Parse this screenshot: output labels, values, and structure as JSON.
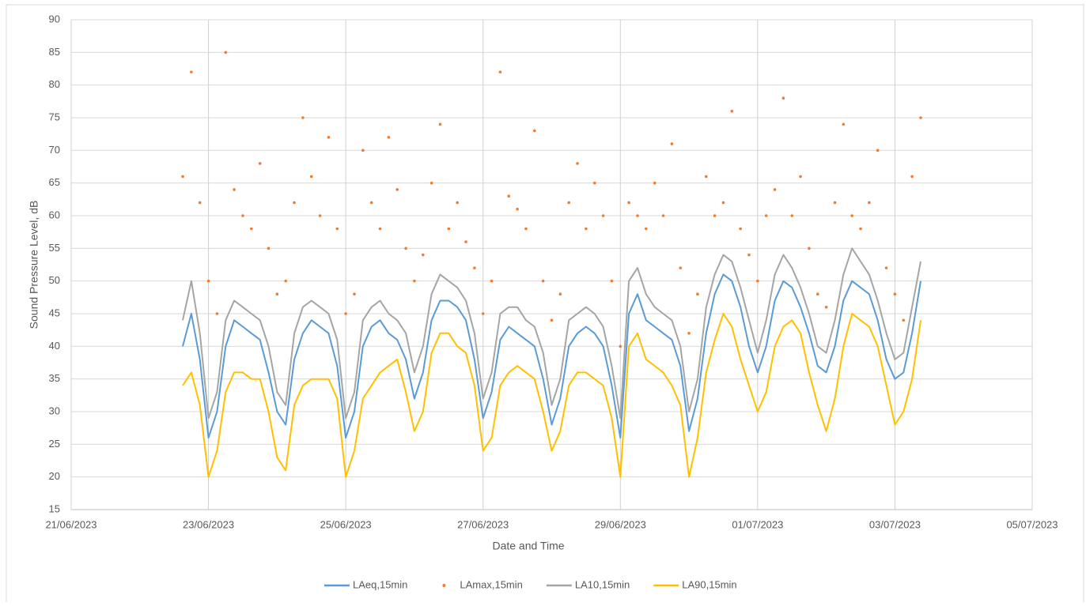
{
  "chart_data": {
    "type": "line",
    "x_label": "Date and Time",
    "y_label": "Sound Pressure Level, dB",
    "xlim": [
      45098,
      45112
    ],
    "xticks": [
      {
        "value": 45098,
        "label": "21/06/2023"
      },
      {
        "value": 45100,
        "label": "23/06/2023"
      },
      {
        "value": 45102,
        "label": "25/06/2023"
      },
      {
        "value": 45104,
        "label": "27/06/2023"
      },
      {
        "value": 45106,
        "label": "29/06/2023"
      },
      {
        "value": 45108,
        "label": "01/07/2023"
      },
      {
        "value": 45110,
        "label": "03/07/2023"
      },
      {
        "value": 45112,
        "label": "05/07/2023"
      }
    ],
    "ylim": [
      15,
      90
    ],
    "yticks": [
      15,
      20,
      25,
      30,
      35,
      40,
      45,
      50,
      55,
      60,
      65,
      70,
      75,
      80,
      85,
      90
    ],
    "grid": true,
    "legend": "bottom",
    "x": [
      45099.625,
      45099.75,
      45099.875,
      45100,
      45100.125,
      45100.25,
      45100.375,
      45100.5,
      45100.625,
      45100.75,
      45100.875,
      45101,
      45101.125,
      45101.25,
      45101.375,
      45101.5,
      45101.625,
      45101.75,
      45101.875,
      45102,
      45102.125,
      45102.25,
      45102.375,
      45102.5,
      45102.625,
      45102.75,
      45102.875,
      45103,
      45103.125,
      45103.25,
      45103.375,
      45103.5,
      45103.625,
      45103.75,
      45103.875,
      45104,
      45104.125,
      45104.25,
      45104.375,
      45104.5,
      45104.625,
      45104.75,
      45104.875,
      45105,
      45105.125,
      45105.25,
      45105.375,
      45105.5,
      45105.625,
      45105.75,
      45105.875,
      45106,
      45106.125,
      45106.25,
      45106.375,
      45106.5,
      45106.625,
      45106.75,
      45106.875,
      45107,
      45107.125,
      45107.25,
      45107.375,
      45107.5,
      45107.625,
      45107.75,
      45107.875,
      45108,
      45108.125,
      45108.25,
      45108.375,
      45108.5,
      45108.625,
      45108.75,
      45108.875,
      45109,
      45109.125,
      45109.25,
      45109.375,
      45109.5,
      45109.625,
      45109.75,
      45109.875,
      45110,
      45110.125,
      45110.25,
      45110.375
    ],
    "series": [
      {
        "name": "LAeq,15min",
        "color": "#5b9bd5",
        "style": "line",
        "values": [
          40,
          45,
          38,
          26,
          30,
          40,
          44,
          43,
          42,
          41,
          36,
          30,
          28,
          38,
          42,
          44,
          43,
          42,
          37,
          26,
          30,
          40,
          43,
          44,
          42,
          41,
          38,
          32,
          36,
          44,
          47,
          47,
          46,
          44,
          38,
          29,
          33,
          41,
          43,
          42,
          41,
          40,
          35,
          28,
          32,
          40,
          42,
          43,
          42,
          40,
          34,
          26,
          45,
          48,
          44,
          43,
          42,
          41,
          37,
          27,
          32,
          42,
          48,
          51,
          50,
          46,
          40,
          36,
          40,
          47,
          50,
          49,
          46,
          42,
          37,
          36,
          40,
          47,
          50,
          49,
          48,
          44,
          38,
          35,
          36,
          42,
          50
        ]
      },
      {
        "name": "LAmax,15min",
        "color": "#ed7d31",
        "style": "markers",
        "values": [
          66,
          82,
          62,
          50,
          45,
          85,
          64,
          60,
          58,
          68,
          55,
          48,
          50,
          62,
          75,
          66,
          60,
          72,
          58,
          45,
          48,
          70,
          62,
          58,
          72,
          64,
          55,
          50,
          54,
          65,
          74,
          58,
          62,
          56,
          52,
          45,
          50,
          82,
          63,
          61,
          58,
          73,
          50,
          44,
          48,
          62,
          68,
          58,
          65,
          60,
          50,
          40,
          62,
          60,
          58,
          65,
          60,
          71,
          52,
          42,
          48,
          66,
          60,
          62,
          76,
          58,
          54,
          50,
          60,
          64,
          78,
          60,
          66,
          55,
          48,
          46,
          62,
          74,
          60,
          58,
          62,
          70,
          52,
          48,
          44,
          66,
          75
        ]
      },
      {
        "name": "LA10,15min",
        "color": "#a5a5a5",
        "style": "line",
        "values": [
          44,
          50,
          42,
          29,
          33,
          44,
          47,
          46,
          45,
          44,
          40,
          33,
          31,
          42,
          46,
          47,
          46,
          45,
          41,
          29,
          33,
          44,
          46,
          47,
          45,
          44,
          42,
          36,
          40,
          48,
          51,
          50,
          49,
          47,
          42,
          32,
          36,
          45,
          46,
          46,
          44,
          43,
          39,
          31,
          35,
          44,
          45,
          46,
          45,
          43,
          37,
          29,
          50,
          52,
          48,
          46,
          45,
          44,
          40,
          30,
          35,
          46,
          51,
          54,
          53,
          49,
          44,
          39,
          44,
          51,
          54,
          52,
          49,
          45,
          40,
          39,
          44,
          51,
          55,
          53,
          51,
          47,
          42,
          38,
          39,
          46,
          53
        ]
      },
      {
        "name": "LA90,15min",
        "color": "#ffc000",
        "style": "line",
        "values": [
          34,
          36,
          31,
          20,
          24,
          33,
          36,
          36,
          35,
          35,
          30,
          23,
          21,
          31,
          34,
          35,
          35,
          35,
          32,
          20,
          24,
          32,
          34,
          36,
          37,
          38,
          33,
          27,
          30,
          39,
          42,
          42,
          40,
          39,
          34,
          24,
          26,
          34,
          36,
          37,
          36,
          35,
          30,
          24,
          27,
          34,
          36,
          36,
          35,
          34,
          29,
          20,
          40,
          42,
          38,
          37,
          36,
          34,
          31,
          20,
          26,
          36,
          41,
          45,
          43,
          38,
          34,
          30,
          33,
          40,
          43,
          44,
          42,
          36,
          31,
          27,
          32,
          40,
          45,
          44,
          43,
          40,
          34,
          28,
          30,
          35,
          44
        ]
      }
    ]
  }
}
